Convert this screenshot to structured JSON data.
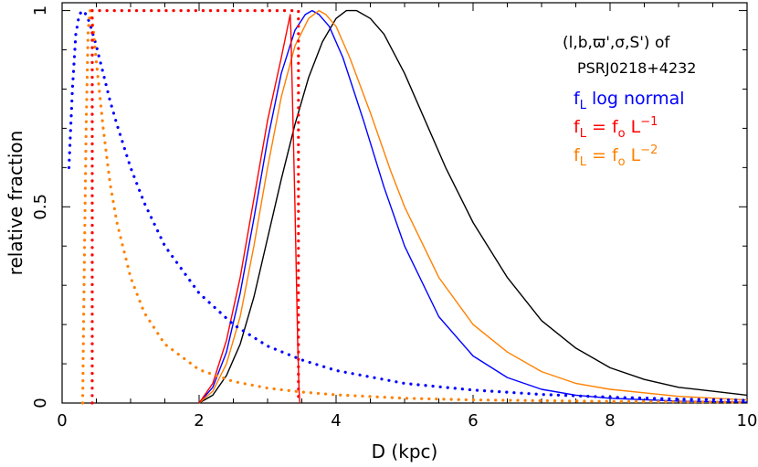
{
  "chart_data": {
    "type": "line",
    "xlabel": "D (kpc)",
    "ylabel": "relative fraction",
    "xlim": [
      0,
      10
    ],
    "ylim": [
      0,
      1.02
    ],
    "x_ticks": [
      0,
      2,
      4,
      6,
      8,
      10
    ],
    "x_tick_labels": [
      "0",
      "2",
      "4",
      "6",
      "8",
      "10"
    ],
    "y_ticks": [
      0,
      0.5,
      1
    ],
    "y_tick_labels": [
      "0",
      "0.5",
      "1"
    ],
    "grid": false,
    "legend_position": "top-right",
    "annotation": {
      "line1": "(l,b,ϖ',σ,S') of",
      "line2": "PSRJ0218+4232"
    },
    "legend": [
      {
        "label": "f",
        "sub": "L",
        "rest": " log normal",
        "color": "#0000ff"
      },
      {
        "label": "f",
        "sub": "L",
        "mid": " = f",
        "sub2": "o",
        "tail": " L",
        "sup": "−1",
        "color": "#ff0000"
      },
      {
        "label": "f",
        "sub": "L",
        "mid": " = f",
        "sub2": "o",
        "tail": " L",
        "sup": "−2",
        "color": "#ff8000"
      }
    ],
    "series": [
      {
        "color": "#000000",
        "style": "solid",
        "x": [
          2.0,
          2.2,
          2.4,
          2.6,
          2.8,
          3.0,
          3.2,
          3.4,
          3.6,
          3.8,
          4.0,
          4.15,
          4.3,
          4.5,
          4.7,
          5.0,
          5.3,
          5.6,
          6.0,
          6.5,
          7.0,
          7.5,
          8.0,
          8.5,
          9.0,
          9.5,
          10.0
        ],
        "y": [
          0.0,
          0.02,
          0.07,
          0.15,
          0.27,
          0.42,
          0.57,
          0.71,
          0.83,
          0.92,
          0.98,
          1.0,
          1.0,
          0.98,
          0.94,
          0.84,
          0.72,
          0.6,
          0.46,
          0.32,
          0.21,
          0.14,
          0.09,
          0.06,
          0.04,
          0.03,
          0.02
        ]
      },
      {
        "color": "#0000ff",
        "style": "solid",
        "x": [
          2.0,
          2.2,
          2.4,
          2.6,
          2.8,
          3.0,
          3.2,
          3.4,
          3.55,
          3.65,
          3.75,
          3.9,
          4.1,
          4.4,
          4.7,
          5.0,
          5.5,
          6.0,
          6.5,
          7.0,
          7.5,
          8.0,
          9.0,
          10.0
        ],
        "y": [
          0.0,
          0.04,
          0.13,
          0.28,
          0.47,
          0.67,
          0.84,
          0.95,
          0.99,
          1.0,
          0.99,
          0.96,
          0.88,
          0.72,
          0.55,
          0.4,
          0.22,
          0.12,
          0.065,
          0.035,
          0.02,
          0.012,
          0.005,
          0.002
        ]
      },
      {
        "color": "#ff8000",
        "style": "solid",
        "x": [
          2.0,
          2.2,
          2.4,
          2.6,
          2.8,
          3.0,
          3.2,
          3.4,
          3.6,
          3.75,
          3.85,
          4.0,
          4.2,
          4.5,
          4.8,
          5.0,
          5.5,
          6.0,
          6.5,
          7.0,
          7.5,
          8.0,
          9.0,
          10.0
        ],
        "y": [
          0.0,
          0.03,
          0.1,
          0.22,
          0.4,
          0.6,
          0.78,
          0.91,
          0.98,
          1.0,
          0.99,
          0.96,
          0.88,
          0.74,
          0.59,
          0.5,
          0.32,
          0.2,
          0.13,
          0.08,
          0.05,
          0.035,
          0.017,
          0.008
        ]
      },
      {
        "color": "#ff0000",
        "style": "solid",
        "x": [
          2.0,
          2.2,
          2.4,
          2.6,
          2.8,
          3.0,
          3.2,
          3.33,
          3.34,
          3.36,
          3.4,
          3.44,
          3.46,
          3.47
        ],
        "y": [
          0.0,
          0.05,
          0.16,
          0.32,
          0.52,
          0.72,
          0.88,
          0.99,
          0.95,
          0.8,
          0.5,
          0.15,
          0.03,
          0.0
        ]
      },
      {
        "color": "#0000ff",
        "style": "dotted",
        "x": [
          0.1,
          0.15,
          0.2,
          0.25,
          0.3,
          0.35,
          0.4,
          0.5,
          0.6,
          0.7,
          0.8,
          1.0,
          1.2,
          1.5,
          2.0,
          2.5,
          3.0,
          3.5,
          4.0,
          5.0,
          6.0,
          7.0,
          8.0,
          9.0,
          10.0
        ],
        "y": [
          0.6,
          0.8,
          0.94,
          0.99,
          1.0,
          0.99,
          0.97,
          0.91,
          0.84,
          0.77,
          0.71,
          0.6,
          0.51,
          0.4,
          0.28,
          0.2,
          0.145,
          0.11,
          0.083,
          0.05,
          0.033,
          0.022,
          0.015,
          0.01,
          0.007
        ]
      },
      {
        "color": "#ff8000",
        "style": "dotted",
        "x": [
          0.3,
          0.32,
          0.35,
          0.38,
          0.41,
          0.45,
          0.5,
          0.6,
          0.7,
          0.8,
          1.0,
          1.2,
          1.5,
          2.0,
          2.5,
          3.0,
          3.5,
          4.0,
          5.0,
          6.0,
          8.0,
          10.0
        ],
        "y": [
          0.0,
          0.3,
          0.7,
          0.95,
          1.0,
          0.96,
          0.87,
          0.7,
          0.56,
          0.46,
          0.32,
          0.23,
          0.15,
          0.085,
          0.055,
          0.038,
          0.028,
          0.021,
          0.012,
          0.008,
          0.004,
          0.002
        ]
      },
      {
        "color": "#ff0000",
        "style": "dotted",
        "x": [
          0.44,
          0.44,
          3.45,
          3.45
        ],
        "y": [
          0.0,
          1.0,
          1.0,
          0.0
        ]
      }
    ]
  }
}
